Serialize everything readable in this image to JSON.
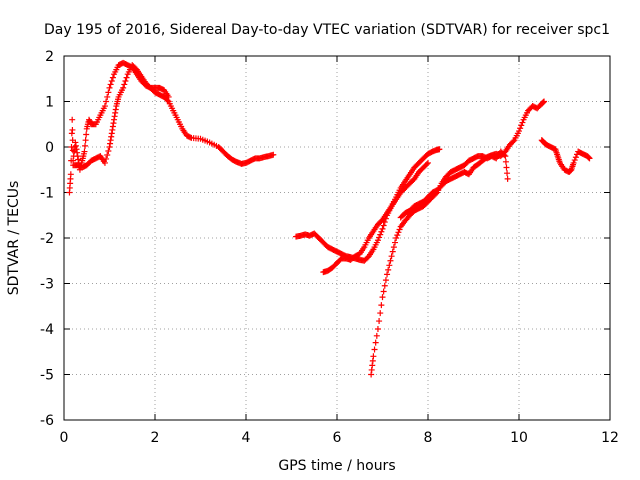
{
  "chart_data": {
    "type": "scatter",
    "title": "Day 195 of 2016, Sidereal Day-to-day VTEC variation (SDTVAR) for receiver spc1",
    "xlabel": "GPS time / hours",
    "ylabel": "SDTVAR / TECUs",
    "xlim": [
      0,
      12
    ],
    "ylim": [
      -6,
      2
    ],
    "xticks": [
      0,
      2,
      4,
      6,
      8,
      10,
      12
    ],
    "yticks": [
      -6,
      -5,
      -4,
      -3,
      -2,
      -1,
      0,
      1,
      2
    ],
    "grid": true,
    "marker": "+",
    "color": "#ff0000",
    "series": [
      {
        "points": [
          [
            0.12,
            -1.0
          ],
          [
            0.15,
            -0.6
          ],
          [
            0.18,
            0.6
          ],
          [
            0.2,
            -0.3
          ],
          [
            0.25,
            0.1
          ],
          [
            0.3,
            -0.2
          ],
          [
            0.35,
            -0.5
          ],
          [
            0.4,
            -0.3
          ],
          [
            0.45,
            -0.1
          ],
          [
            0.5,
            0.4
          ],
          [
            0.55,
            0.6
          ],
          [
            0.6,
            0.5
          ],
          [
            0.7,
            0.5
          ],
          [
            0.8,
            0.7
          ],
          [
            0.9,
            0.9
          ],
          [
            1.0,
            1.3
          ],
          [
            1.1,
            1.6
          ],
          [
            1.2,
            1.8
          ],
          [
            1.3,
            1.85
          ],
          [
            1.4,
            1.8
          ],
          [
            1.5,
            1.75
          ],
          [
            1.6,
            1.6
          ],
          [
            1.7,
            1.45
          ],
          [
            1.8,
            1.35
          ],
          [
            1.9,
            1.3
          ],
          [
            2.0,
            1.2
          ],
          [
            2.1,
            1.15
          ],
          [
            2.2,
            1.1
          ],
          [
            2.3,
            1.0
          ],
          [
            2.4,
            0.8
          ],
          [
            2.5,
            0.6
          ],
          [
            2.6,
            0.4
          ],
          [
            2.7,
            0.25
          ],
          [
            2.8,
            0.2
          ],
          [
            3.0,
            0.18
          ],
          [
            3.2,
            0.1
          ],
          [
            3.4,
            0.0
          ],
          [
            3.5,
            -0.1
          ],
          [
            3.6,
            -0.2
          ],
          [
            3.7,
            -0.28
          ],
          [
            3.8,
            -0.33
          ],
          [
            3.9,
            -0.37
          ],
          [
            4.0,
            -0.35
          ],
          [
            4.1,
            -0.3
          ],
          [
            4.2,
            -0.25
          ],
          [
            4.3,
            -0.25
          ],
          [
            4.4,
            -0.22
          ],
          [
            4.5,
            -0.2
          ],
          [
            4.6,
            -0.17
          ]
        ]
      },
      {
        "points": [
          [
            0.2,
            -0.4
          ],
          [
            0.3,
            -0.4
          ],
          [
            0.4,
            -0.45
          ],
          [
            0.5,
            -0.4
          ],
          [
            0.6,
            -0.3
          ],
          [
            0.7,
            -0.25
          ],
          [
            0.8,
            -0.2
          ],
          [
            0.9,
            -0.35
          ],
          [
            1.0,
            0.0
          ],
          [
            1.05,
            0.3
          ],
          [
            1.1,
            0.6
          ],
          [
            1.15,
            0.9
          ],
          [
            1.2,
            1.1
          ],
          [
            1.3,
            1.3
          ],
          [
            1.4,
            1.6
          ],
          [
            1.5,
            1.8
          ],
          [
            1.6,
            1.7
          ],
          [
            1.7,
            1.55
          ],
          [
            1.8,
            1.4
          ],
          [
            1.9,
            1.3
          ],
          [
            2.0,
            1.3
          ],
          [
            2.1,
            1.3
          ],
          [
            2.2,
            1.25
          ],
          [
            2.3,
            1.1
          ]
        ]
      },
      {
        "points": [
          [
            5.1,
            -1.97
          ],
          [
            5.2,
            -1.95
          ],
          [
            5.3,
            -1.92
          ],
          [
            5.4,
            -1.95
          ],
          [
            5.5,
            -1.9
          ],
          [
            5.6,
            -2.0
          ],
          [
            5.7,
            -2.1
          ],
          [
            5.8,
            -2.2
          ],
          [
            5.9,
            -2.25
          ],
          [
            6.0,
            -2.3
          ],
          [
            6.1,
            -2.35
          ],
          [
            6.2,
            -2.4
          ],
          [
            6.3,
            -2.42
          ],
          [
            6.4,
            -2.45
          ],
          [
            6.5,
            -2.48
          ],
          [
            6.6,
            -2.5
          ],
          [
            6.7,
            -2.4
          ],
          [
            6.8,
            -2.25
          ],
          [
            6.9,
            -2.05
          ],
          [
            7.0,
            -1.8
          ],
          [
            7.1,
            -1.5
          ],
          [
            7.2,
            -1.3
          ],
          [
            7.3,
            -1.1
          ],
          [
            7.4,
            -0.9
          ],
          [
            7.5,
            -0.75
          ],
          [
            7.6,
            -0.6
          ],
          [
            7.7,
            -0.45
          ],
          [
            7.8,
            -0.35
          ],
          [
            7.9,
            -0.25
          ],
          [
            8.0,
            -0.15
          ],
          [
            8.1,
            -0.1
          ],
          [
            8.2,
            -0.06
          ],
          [
            8.25,
            -0.05
          ]
        ]
      },
      {
        "points": [
          [
            5.7,
            -2.75
          ],
          [
            5.8,
            -2.72
          ],
          [
            5.9,
            -2.65
          ],
          [
            6.0,
            -2.55
          ],
          [
            6.1,
            -2.45
          ],
          [
            6.2,
            -2.45
          ],
          [
            6.3,
            -2.48
          ],
          [
            6.4,
            -2.4
          ],
          [
            6.5,
            -2.35
          ],
          [
            6.6,
            -2.2
          ],
          [
            6.7,
            -2.0
          ],
          [
            6.8,
            -1.85
          ],
          [
            6.9,
            -1.7
          ],
          [
            7.0,
            -1.6
          ],
          [
            7.1,
            -1.45
          ],
          [
            7.2,
            -1.3
          ],
          [
            7.3,
            -1.15
          ],
          [
            7.4,
            -1.0
          ],
          [
            7.5,
            -0.9
          ],
          [
            7.6,
            -0.8
          ],
          [
            7.7,
            -0.7
          ],
          [
            7.8,
            -0.55
          ],
          [
            7.9,
            -0.45
          ],
          [
            8.0,
            -0.35
          ]
        ]
      },
      {
        "points": [
          [
            6.75,
            -5.0
          ],
          [
            6.8,
            -4.6
          ],
          [
            6.9,
            -4.0
          ],
          [
            7.0,
            -3.3
          ],
          [
            7.1,
            -2.8
          ],
          [
            7.2,
            -2.4
          ],
          [
            7.3,
            -2.0
          ],
          [
            7.4,
            -1.75
          ],
          [
            7.5,
            -1.62
          ],
          [
            7.6,
            -1.5
          ],
          [
            7.7,
            -1.4
          ],
          [
            7.8,
            -1.35
          ],
          [
            7.9,
            -1.3
          ],
          [
            8.0,
            -1.2
          ],
          [
            8.1,
            -1.1
          ],
          [
            8.2,
            -1.0
          ],
          [
            8.3,
            -0.8
          ],
          [
            8.4,
            -0.65
          ],
          [
            8.5,
            -0.55
          ],
          [
            8.6,
            -0.5
          ],
          [
            8.7,
            -0.45
          ],
          [
            8.8,
            -0.4
          ],
          [
            8.9,
            -0.3
          ],
          [
            9.0,
            -0.25
          ],
          [
            9.1,
            -0.2
          ],
          [
            9.2,
            -0.2
          ],
          [
            9.3,
            -0.25
          ],
          [
            9.4,
            -0.2
          ],
          [
            9.5,
            -0.25
          ],
          [
            9.6,
            -0.1
          ],
          [
            9.7,
            -0.2
          ],
          [
            9.75,
            -0.7
          ]
        ]
      },
      {
        "points": [
          [
            7.4,
            -1.55
          ],
          [
            7.5,
            -1.45
          ],
          [
            7.6,
            -1.4
          ],
          [
            7.7,
            -1.3
          ],
          [
            7.8,
            -1.25
          ],
          [
            7.9,
            -1.2
          ],
          [
            8.0,
            -1.1
          ],
          [
            8.1,
            -1.0
          ],
          [
            8.2,
            -0.95
          ],
          [
            8.3,
            -0.85
          ],
          [
            8.4,
            -0.75
          ],
          [
            8.5,
            -0.7
          ],
          [
            8.6,
            -0.65
          ],
          [
            8.7,
            -0.6
          ],
          [
            8.8,
            -0.55
          ],
          [
            8.9,
            -0.6
          ],
          [
            9.0,
            -0.45
          ],
          [
            9.1,
            -0.38
          ],
          [
            9.2,
            -0.3
          ],
          [
            9.3,
            -0.22
          ],
          [
            9.4,
            -0.18
          ],
          [
            9.5,
            -0.15
          ],
          [
            9.6,
            -0.2
          ],
          [
            9.7,
            -0.1
          ],
          [
            9.8,
            0.05
          ],
          [
            9.9,
            0.15
          ],
          [
            10.0,
            0.35
          ],
          [
            10.1,
            0.6
          ],
          [
            10.2,
            0.8
          ],
          [
            10.3,
            0.9
          ],
          [
            10.4,
            0.85
          ],
          [
            10.5,
            0.95
          ],
          [
            10.55,
            1.0
          ]
        ]
      },
      {
        "points": [
          [
            10.5,
            0.15
          ],
          [
            10.55,
            0.1
          ],
          [
            10.6,
            0.05
          ],
          [
            10.7,
            0.0
          ],
          [
            10.8,
            -0.05
          ],
          [
            10.85,
            -0.2
          ],
          [
            10.9,
            -0.35
          ],
          [
            11.0,
            -0.5
          ],
          [
            11.1,
            -0.55
          ],
          [
            11.15,
            -0.5
          ],
          [
            11.2,
            -0.35
          ],
          [
            11.3,
            -0.1
          ],
          [
            11.4,
            -0.15
          ],
          [
            11.5,
            -0.2
          ],
          [
            11.55,
            -0.25
          ]
        ]
      }
    ]
  }
}
